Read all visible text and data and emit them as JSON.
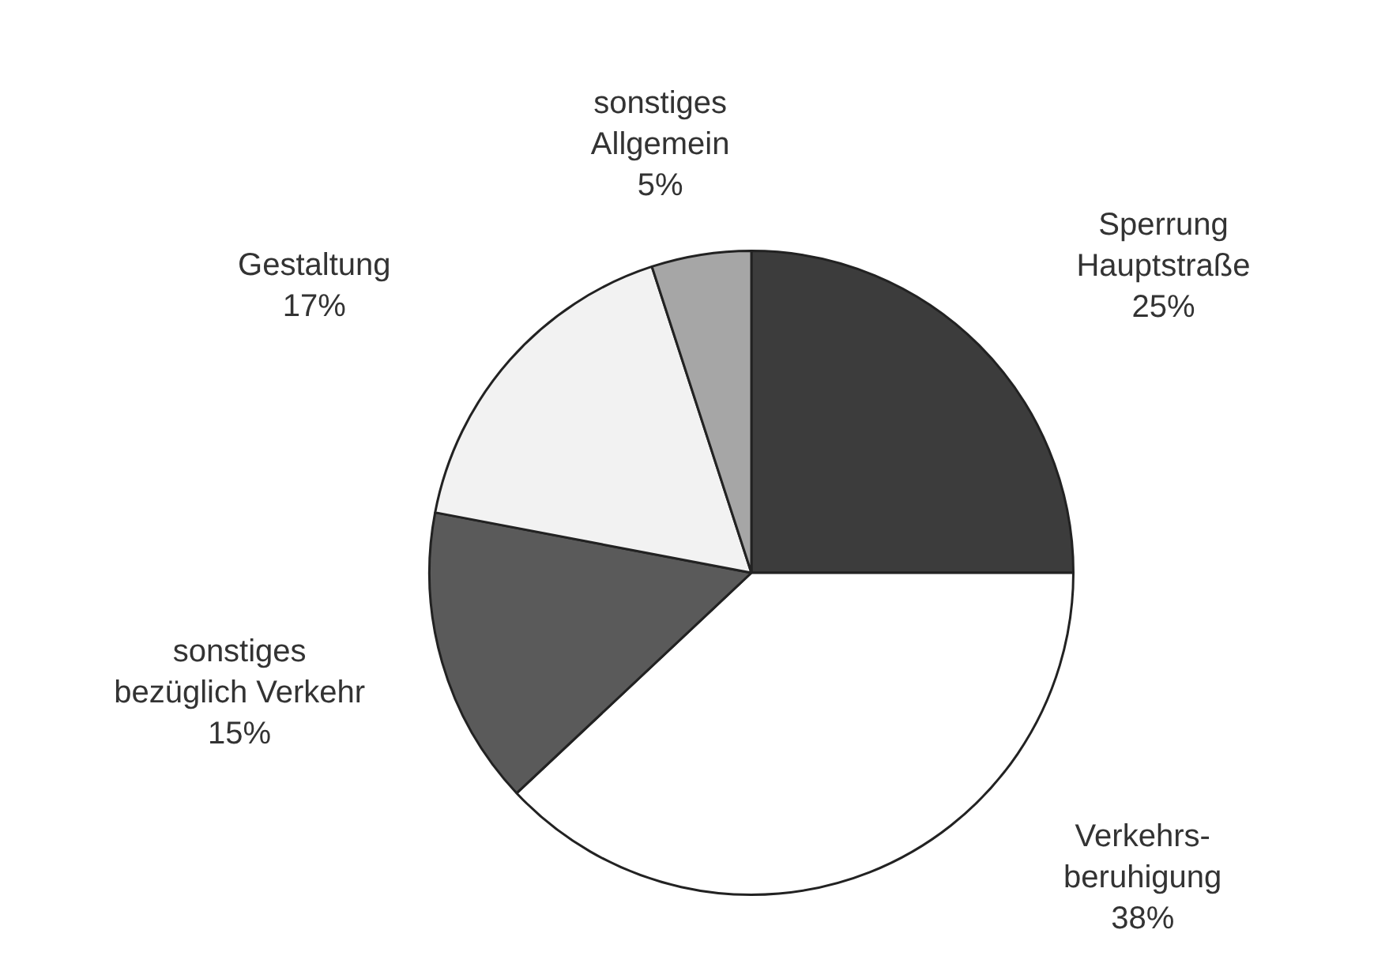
{
  "chart_data": {
    "type": "pie",
    "categories": [
      "Sperrung\nHauptstraße",
      "Verkehrs-\nberuhigung",
      "sonstiges\nbezüglich Verkehr",
      "Gestaltung",
      "sonstiges\nAllgemein"
    ],
    "values": [
      25,
      38,
      15,
      17,
      5
    ],
    "value_labels": [
      "25%",
      "38%",
      "15%",
      "17%",
      "5%"
    ],
    "colors": [
      "#3c3c3c",
      "#ffffff",
      "#5a5a5a",
      "#f2f2f2",
      "#a6a6a6"
    ],
    "legend": false
  }
}
